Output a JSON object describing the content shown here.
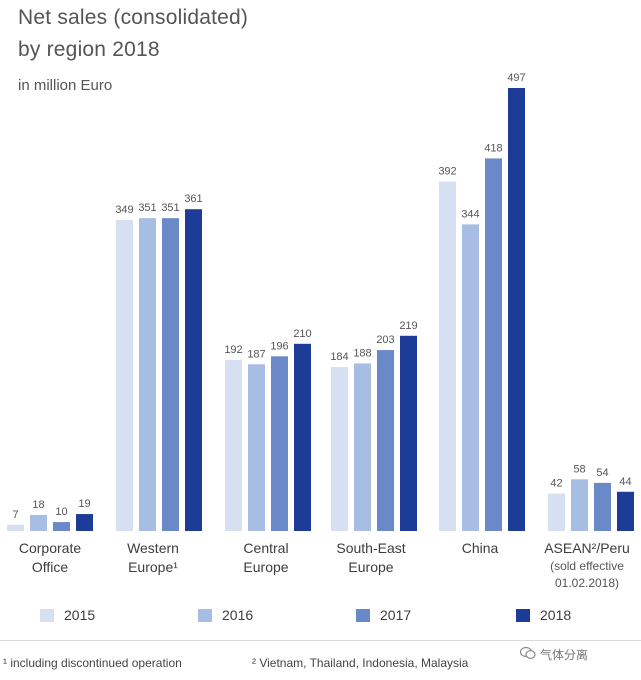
{
  "title_line1": "Net sales (consolidated)",
  "title_line2": "by region 2018",
  "subtitle": "in million Euro",
  "chart_data": {
    "type": "bar",
    "categories": [
      {
        "label1": "Corporate",
        "label2": "Office",
        "note": ""
      },
      {
        "label1": "Western",
        "label2": "Europe¹",
        "note": ""
      },
      {
        "label1": "Central",
        "label2": "Europe",
        "note": ""
      },
      {
        "label1": "South-East",
        "label2": "Europe",
        "note": ""
      },
      {
        "label1": "China",
        "label2": "",
        "note": ""
      },
      {
        "label1": "ASEAN²/Peru",
        "label2": "(sold effective",
        "note": "01.02.2018)"
      }
    ],
    "series": [
      {
        "name": "2015",
        "color": "#d6e0f2",
        "values": [
          7,
          349,
          192,
          184,
          392,
          42
        ]
      },
      {
        "name": "2016",
        "color": "#a8bde3",
        "values": [
          18,
          351,
          187,
          188,
          344,
          58
        ]
      },
      {
        "name": "2017",
        "color": "#6a89c9",
        "values": [
          10,
          351,
          196,
          203,
          418,
          54
        ]
      },
      {
        "name": "2018",
        "color": "#1c3c97",
        "values": [
          19,
          361,
          210,
          219,
          497,
          44
        ]
      }
    ],
    "ylim": [
      0,
      497
    ]
  },
  "footnote1": "¹ including discontinued operation",
  "footnote2": "² Vietnam, Thailand, Indonesia, Malaysia",
  "watermark": "气体分离",
  "label_color": "#555555"
}
